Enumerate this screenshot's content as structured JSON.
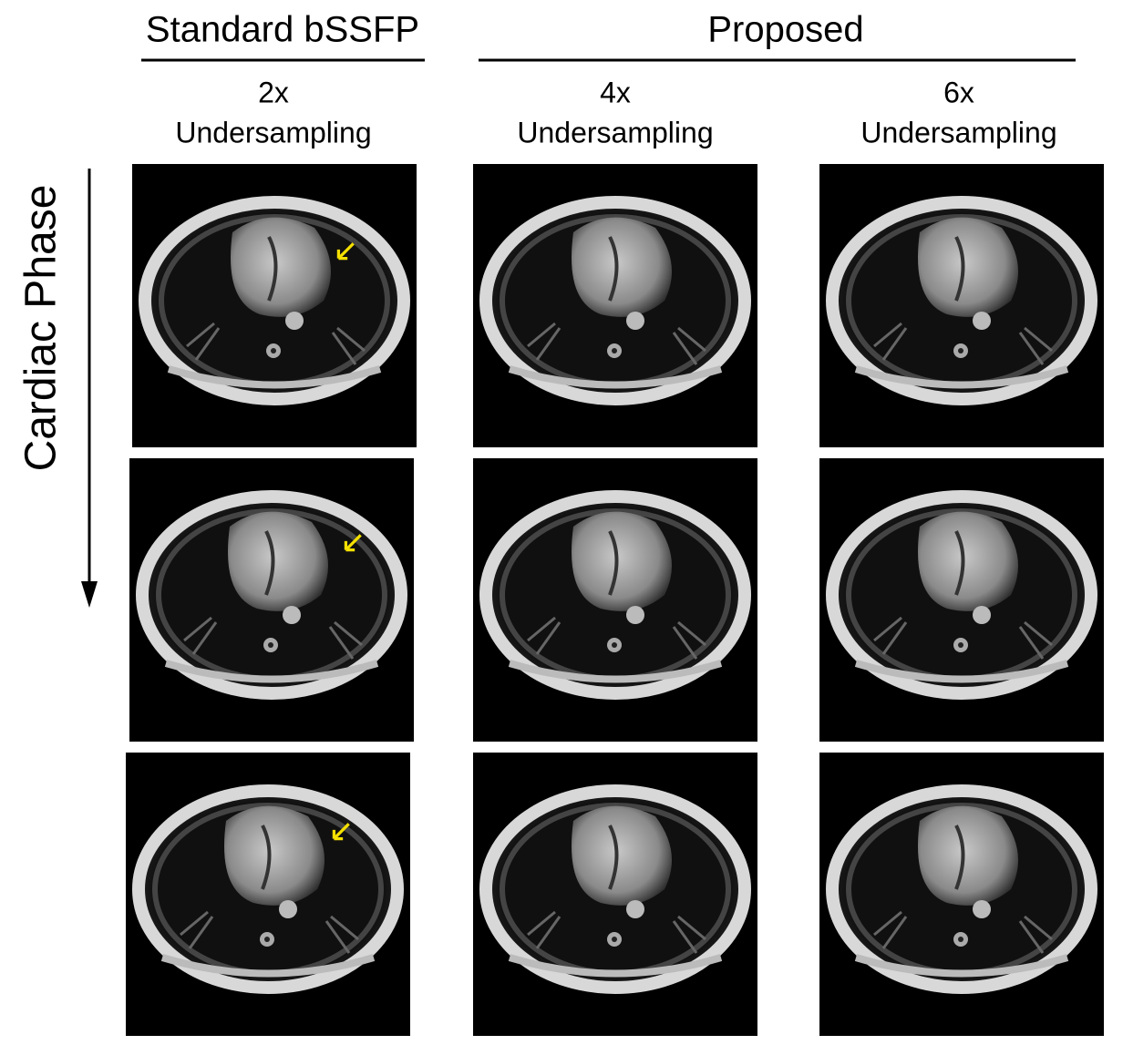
{
  "header": {
    "groups": [
      "Standard bSSFP",
      "Proposed"
    ],
    "columns": [
      [
        "2x",
        "Undersampling"
      ],
      [
        "4x",
        "Undersampling"
      ],
      [
        "6x",
        "Undersampling"
      ]
    ]
  },
  "row_axis": {
    "label": "Cardiac Phase"
  }
}
